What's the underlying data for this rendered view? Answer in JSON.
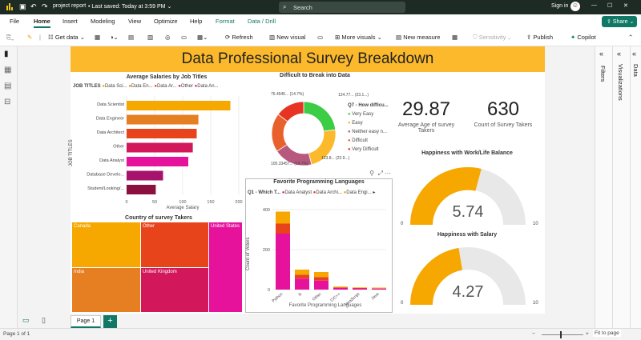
{
  "app": {
    "file_name": "project report",
    "saved_status": "Last saved: Today at 3:59 PM",
    "search_placeholder": "Search",
    "signin": "Sign in",
    "share": "Share"
  },
  "menu": [
    "File",
    "Home",
    "Insert",
    "Modeling",
    "View",
    "Optimize",
    "Help",
    "Format",
    "Data / Drill"
  ],
  "toolbar": {
    "get_data": "Get data",
    "refresh": "Refresh",
    "new_visual": "New visual",
    "more_visuals": "More visuals",
    "new_measure": "New measure",
    "sensitivity": "Sensitivity",
    "publish": "Publish",
    "copilot": "Copilot"
  },
  "panels": {
    "filters": "Filters",
    "visualizations": "Visualizations",
    "data": "Data"
  },
  "report": {
    "title": "Data Professional Survey Breakdown"
  },
  "salary_chart": {
    "title": "Average Salaries by Job Titles",
    "legend_title": "JOB TITLES",
    "legend": [
      "Data Sci...",
      "Data En...",
      "Data Ar...",
      "Other",
      "Data An..."
    ],
    "ylabel": "JOB TITLES",
    "xlabel": "Average Salary"
  },
  "donut_chart": {
    "title": "Difficult to Break into Data",
    "legend_title": "Q7 - How difficu...",
    "legend": [
      "Very Easy",
      "Easy",
      "Neither easy n...",
      "Difficult",
      "Very Difficult"
    ],
    "labels": [
      "76.4545... (14.7%)",
      "124.77... (23.1...)",
      "123.8... (22.9...)",
      "105.33457... (19.7%)"
    ]
  },
  "kpi": {
    "age_value": "29.87",
    "age_label": "Average Age of survey Takers",
    "count_value": "630",
    "count_label": "Count of Survey Takers"
  },
  "gauge1": {
    "title": "Happiness with Work/Life Balance",
    "value": "5.74",
    "min": "0",
    "max": "10"
  },
  "gauge2": {
    "title": "Happiness with Salary",
    "value": "4.27",
    "min": "0",
    "max": "10"
  },
  "treemap": {
    "title": "Country of survey Takers",
    "cells": [
      "Canada",
      "Other",
      "United States",
      "India",
      "United Kingdom"
    ]
  },
  "lang_chart": {
    "title": "Favorite Programming Languages",
    "legend_title": "Q1 - Which T...",
    "legend": [
      "Data Analyst",
      "Data Archi...",
      "Data Engi..."
    ],
    "ylabel": "Count of Voters",
    "xlabel": "Favorite Programming Languages"
  },
  "pages": {
    "tab": "Page 1",
    "add": "+"
  },
  "status": {
    "page": "Page 1 of 1",
    "fit": "Fit to page"
  },
  "chart_data": [
    {
      "type": "bar",
      "title": "Average Salaries by Job Titles",
      "categories": [
        "Data Scientist",
        "Data Engineer",
        "Data Architect",
        "Other",
        "Data Analyst",
        "Database Develo...",
        "Student/Looking/..."
      ],
      "values": [
        185,
        128,
        125,
        118,
        110,
        65,
        52
      ],
      "xlim": [
        0,
        200
      ],
      "xticks": [
        "0",
        "50",
        "100",
        "150",
        "200"
      ],
      "xlabel": "Average Salary",
      "ylabel": "JOB TITLES"
    },
    {
      "type": "pie",
      "title": "Difficult to Break into Data",
      "categories": [
        "Very Easy",
        "Easy",
        "Neither easy n...",
        "Difficult",
        "Very Difficult"
      ],
      "values": [
        23.1,
        22.9,
        19.7,
        19.6,
        14.7
      ]
    },
    {
      "type": "bar",
      "title": "Favorite Programming Languages",
      "categories": [
        "Python",
        "R",
        "Other",
        "C/C++",
        "JavaScript",
        "Java"
      ],
      "series": [
        {
          "name": "Data Analyst",
          "values": [
            280,
            55,
            45,
            8,
            6,
            5
          ]
        },
        {
          "name": "Data Archi...",
          "values": [
            50,
            20,
            18,
            3,
            2,
            2
          ]
        },
        {
          "name": "Data Engi...",
          "values": [
            60,
            25,
            25,
            4,
            3,
            3
          ]
        }
      ],
      "ylim": [
        0,
        400
      ],
      "yticks": [
        "0",
        "200",
        "400"
      ],
      "ylabel": "Count of Voters",
      "xlabel": "Favorite Programming Languages"
    }
  ],
  "colors": {
    "orange": "#f6a800",
    "dark_orange": "#e67e22",
    "red_orange": "#e8441b",
    "crimson": "#d2175b",
    "magenta": "#e6129b",
    "green": "#3ccc45",
    "gold": "#fbb92b",
    "gray_arc": "#e8e8e8"
  }
}
